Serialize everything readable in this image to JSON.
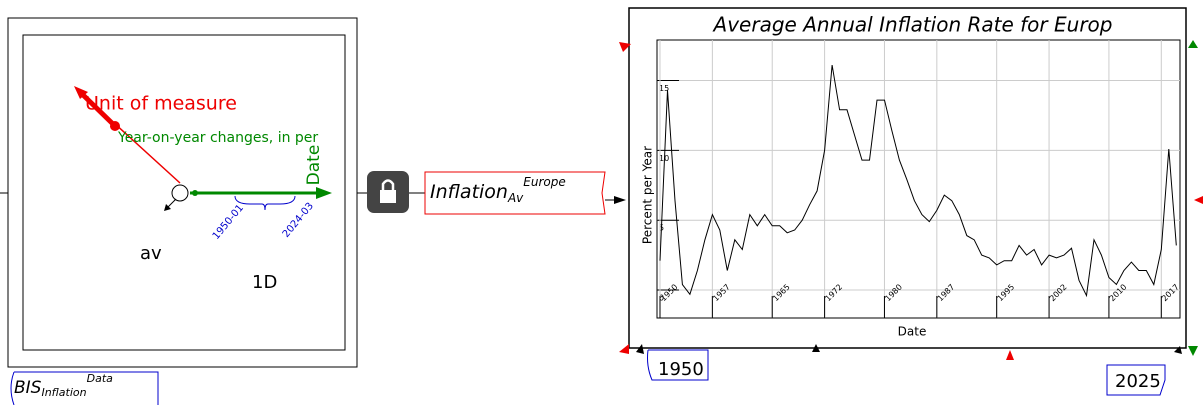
{
  "variable": {
    "name": "BIS",
    "subscript": "Inflation",
    "superscript": "Data"
  },
  "ravel": {
    "handles": [
      {
        "label": "Unit of measure",
        "slice": "Year-on-year changes, in per"
      },
      {
        "label": "Date",
        "range": [
          "1950-01",
          "2024-03"
        ]
      }
    ],
    "reduction": "av",
    "rank": "1D"
  },
  "output": {
    "name": "Inflation",
    "subscript": "Av",
    "superscript": "Europe"
  },
  "range_min": "1950",
  "range_max": "2025",
  "chart_data": {
    "type": "line",
    "title": "Average Annual Inflation Rate for Europ",
    "xlabel": "Date",
    "ylabel": "Percent per Year",
    "x": [
      1950,
      1951,
      1952,
      1953,
      1954,
      1955,
      1956,
      1957,
      1958,
      1959,
      1960,
      1961,
      1962,
      1963,
      1964,
      1965,
      1966,
      1967,
      1968,
      1969,
      1970,
      1971,
      1972,
      1973,
      1974,
      1975,
      1976,
      1977,
      1978,
      1979,
      1980,
      1981,
      1982,
      1983,
      1984,
      1985,
      1986,
      1987,
      1988,
      1989,
      1990,
      1991,
      1992,
      1993,
      1994,
      1995,
      1996,
      1997,
      1998,
      1999,
      2000,
      2001,
      2002,
      2003,
      2004,
      2005,
      2006,
      2007,
      2008,
      2009,
      2010,
      2011,
      2012,
      2013,
      2014,
      2015,
      2016,
      2017,
      2018,
      2019
    ],
    "values": [
      2.1,
      14.3,
      6.4,
      0.4,
      -0.3,
      1.4,
      3.6,
      5.4,
      4.3,
      1.4,
      3.6,
      2.9,
      5.4,
      4.6,
      5.4,
      4.6,
      4.6,
      4.1,
      4.3,
      5,
      6.1,
      7.1,
      10,
      16.1,
      12.9,
      12.9,
      11.1,
      9.3,
      9.3,
      13.6,
      13.6,
      11.4,
      9.3,
      7.9,
      6.4,
      5.4,
      4.9,
      5.7,
      6.8,
      6.4,
      5.4,
      3.9,
      3.6,
      2.5,
      2.3,
      1.8,
      2.1,
      2.1,
      3.2,
      2.5,
      2.9,
      1.8,
      2.5,
      2.3,
      2.5,
      3,
      0.7,
      -0.4,
      3.6,
      2.5,
      0.9,
      0.4,
      1.4,
      2,
      1.4,
      1.4,
      0.4,
      2.9,
      10.1,
      3.2
    ],
    "color": "#000000",
    "xlim": [
      1949.6,
      2019.5
    ],
    "xticks": [
      1950,
      1957,
      1965,
      1972,
      1980,
      1987,
      1995,
      2002,
      2010,
      2017
    ],
    "ylim": [
      -2,
      17.9
    ],
    "yticks": [
      0,
      5,
      10,
      15
    ],
    "grid": true
  }
}
